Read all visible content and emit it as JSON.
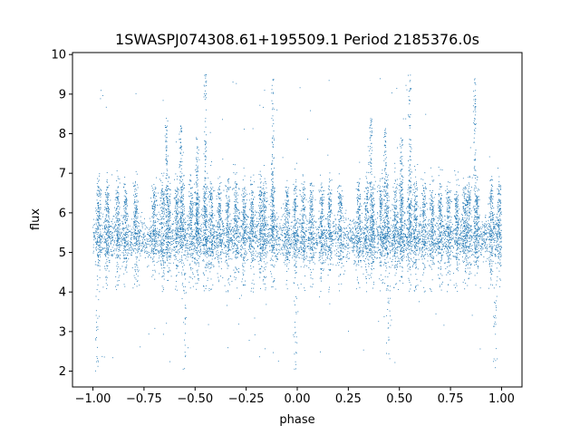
{
  "chart_data": {
    "type": "scatter",
    "title": "1SWASPJ074308.61+195509.1 Period 2185376.0s",
    "xlabel": "phase",
    "ylabel": "flux",
    "xlim": [
      -1.1,
      1.1
    ],
    "ylim": [
      1.6,
      10.05
    ],
    "x_ticks": [
      -1.0,
      -0.75,
      -0.5,
      -0.25,
      0.0,
      0.25,
      0.5,
      0.75,
      1.0
    ],
    "x_tick_labels": [
      "−1.00",
      "−0.75",
      "−0.50",
      "−0.25",
      "0.00",
      "0.25",
      "0.50",
      "0.75",
      "1.00"
    ],
    "y_ticks": [
      2,
      3,
      4,
      5,
      6,
      7,
      8,
      9,
      10
    ],
    "y_tick_labels": [
      "2",
      "3",
      "4",
      "5",
      "6",
      "7",
      "8",
      "9",
      "10"
    ],
    "grid": false,
    "legend": "none",
    "marker_color": "#1f77b4",
    "baseline_flux": 5.35,
    "upper_band_flux": 6.2,
    "column_phases": [
      -0.97,
      -0.93,
      -0.88,
      -0.84,
      -0.79,
      -0.7,
      -0.66,
      -0.63,
      -0.59,
      -0.56,
      -0.52,
      -0.49,
      -0.45,
      -0.42,
      -0.38,
      -0.34,
      -0.3,
      -0.26,
      -0.22,
      -0.18,
      -0.16,
      -0.12,
      -0.05,
      -0.01,
      0.03,
      0.07,
      0.12,
      0.16,
      0.21,
      0.3,
      0.34,
      0.37,
      0.41,
      0.44,
      0.48,
      0.51,
      0.55,
      0.58,
      0.62,
      0.66,
      0.7,
      0.74,
      0.78,
      0.82,
      0.84,
      0.88,
      0.95,
      0.99
    ],
    "flare_columns": [
      {
        "phase": -0.45,
        "flux_range": [
          5.0,
          9.5
        ]
      },
      {
        "phase": -0.12,
        "flux_range": [
          5.0,
          9.4
        ]
      },
      {
        "phase": 0.55,
        "flux_range": [
          5.0,
          9.5
        ]
      },
      {
        "phase": 0.87,
        "flux_range": [
          5.0,
          9.4
        ]
      },
      {
        "phase": -0.64,
        "flux_range": [
          5.0,
          8.4
        ]
      },
      {
        "phase": -0.57,
        "flux_range": [
          5.0,
          8.2
        ]
      },
      {
        "phase": -0.49,
        "flux_range": [
          5.0,
          7.9
        ]
      },
      {
        "phase": 0.36,
        "flux_range": [
          5.0,
          8.4
        ]
      },
      {
        "phase": 0.43,
        "flux_range": [
          5.0,
          8.2
        ]
      },
      {
        "phase": 0.51,
        "flux_range": [
          5.0,
          7.9
        ]
      }
    ],
    "low_outlier_phases": [
      -0.98,
      -0.55,
      -0.01,
      0.45,
      0.97
    ]
  }
}
